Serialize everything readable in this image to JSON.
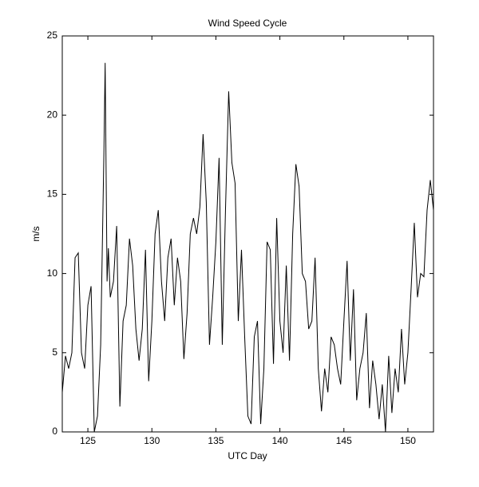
{
  "chart_data": {
    "type": "line",
    "title": "Wind Speed Cycle",
    "x_label": "UTC Day",
    "y_label": "m/s",
    "x": [
      123.0,
      123.25,
      123.5,
      123.75,
      124.0,
      124.25,
      124.5,
      124.75,
      125.0,
      125.25,
      125.5,
      125.75,
      126.0,
      126.25,
      126.35,
      126.5,
      126.6,
      126.75,
      127.0,
      127.25,
      127.5,
      127.75,
      128.0,
      128.25,
      128.5,
      128.75,
      129.0,
      129.25,
      129.5,
      129.75,
      130.0,
      130.25,
      130.5,
      130.75,
      131.0,
      131.25,
      131.5,
      131.75,
      132.0,
      132.25,
      132.5,
      132.75,
      133.0,
      133.25,
      133.5,
      133.75,
      134.0,
      134.25,
      134.5,
      134.75,
      135.0,
      135.25,
      135.5,
      135.75,
      136.0,
      136.25,
      136.5,
      136.75,
      137.0,
      137.25,
      137.5,
      137.75,
      138.0,
      138.25,
      138.5,
      138.75,
      139.0,
      139.25,
      139.5,
      139.75,
      140.0,
      140.25,
      140.5,
      140.75,
      141.0,
      141.25,
      141.5,
      141.75,
      142.0,
      142.25,
      142.5,
      142.75,
      143.0,
      143.25,
      143.5,
      143.75,
      144.0,
      144.25,
      144.5,
      144.75,
      145.0,
      145.25,
      145.5,
      145.75,
      146.0,
      146.25,
      146.5,
      146.75,
      147.0,
      147.25,
      147.5,
      147.75,
      148.0,
      148.25,
      148.5,
      148.75,
      149.0,
      149.25,
      149.5,
      149.75,
      150.0,
      150.25,
      150.5,
      150.75,
      151.0,
      151.25,
      151.5,
      151.75,
      152.0
    ],
    "series": [
      {
        "color": "#000000",
        "values": [
          2.5,
          4.8,
          4.0,
          5.0,
          11.0,
          11.3,
          5.0,
          4.0,
          8.0,
          9.2,
          0.0,
          1.0,
          5.5,
          17.5,
          23.3,
          9.5,
          11.6,
          8.5,
          9.5,
          13.0,
          1.6,
          7.0,
          8.0,
          12.2,
          10.5,
          6.5,
          4.5,
          6.5,
          11.5,
          3.2,
          7.0,
          12.5,
          14.0,
          9.5,
          7.0,
          11.0,
          12.2,
          8.0,
          11.0,
          9.5,
          4.6,
          7.5,
          12.5,
          13.5,
          12.5,
          14.2,
          18.8,
          14.5,
          5.5,
          8.5,
          12.0,
          17.3,
          5.5,
          14.0,
          21.5,
          17.0,
          15.7,
          7.0,
          11.5,
          6.0,
          1.0,
          0.5,
          6.0,
          7.0,
          0.5,
          4.0,
          12.0,
          11.5,
          4.3,
          13.5,
          7.0,
          5.0,
          10.5,
          4.5,
          12.5,
          16.9,
          15.5,
          10.0,
          9.5,
          6.5,
          7.0,
          11.0,
          4.0,
          1.3,
          4.0,
          2.5,
          6.0,
          5.5,
          4.0,
          3.0,
          7.0,
          10.8,
          4.5,
          9.0,
          2.0,
          4.0,
          5.0,
          7.5,
          1.5,
          4.5,
          3.0,
          0.8,
          3.0,
          0.0,
          4.8,
          1.2,
          4.0,
          2.5,
          6.5,
          3.0,
          5.0,
          9.0,
          13.2,
          8.5,
          10.0,
          9.8,
          14.0,
          15.9,
          14.0
        ]
      }
    ],
    "xlim": [
      123,
      152
    ],
    "xticks": [
      125,
      130,
      135,
      140,
      145,
      150
    ],
    "ylim": [
      0,
      25
    ],
    "yticks": [
      0,
      5,
      10,
      15,
      20,
      25
    ]
  }
}
